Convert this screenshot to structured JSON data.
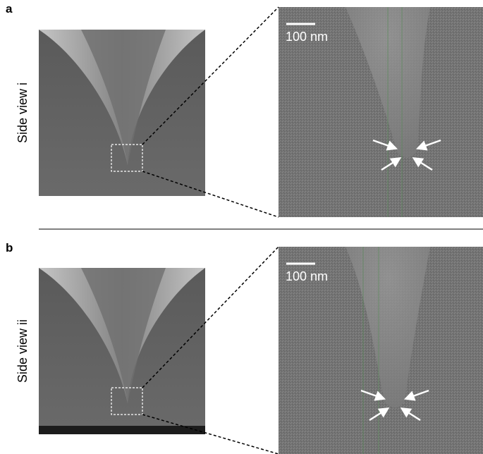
{
  "panels": [
    {
      "label": "a",
      "side_label": "Side view i",
      "scale_bar": "100 nm"
    },
    {
      "label": "b",
      "side_label": "Side view ii",
      "scale_bar": "100 nm"
    }
  ]
}
